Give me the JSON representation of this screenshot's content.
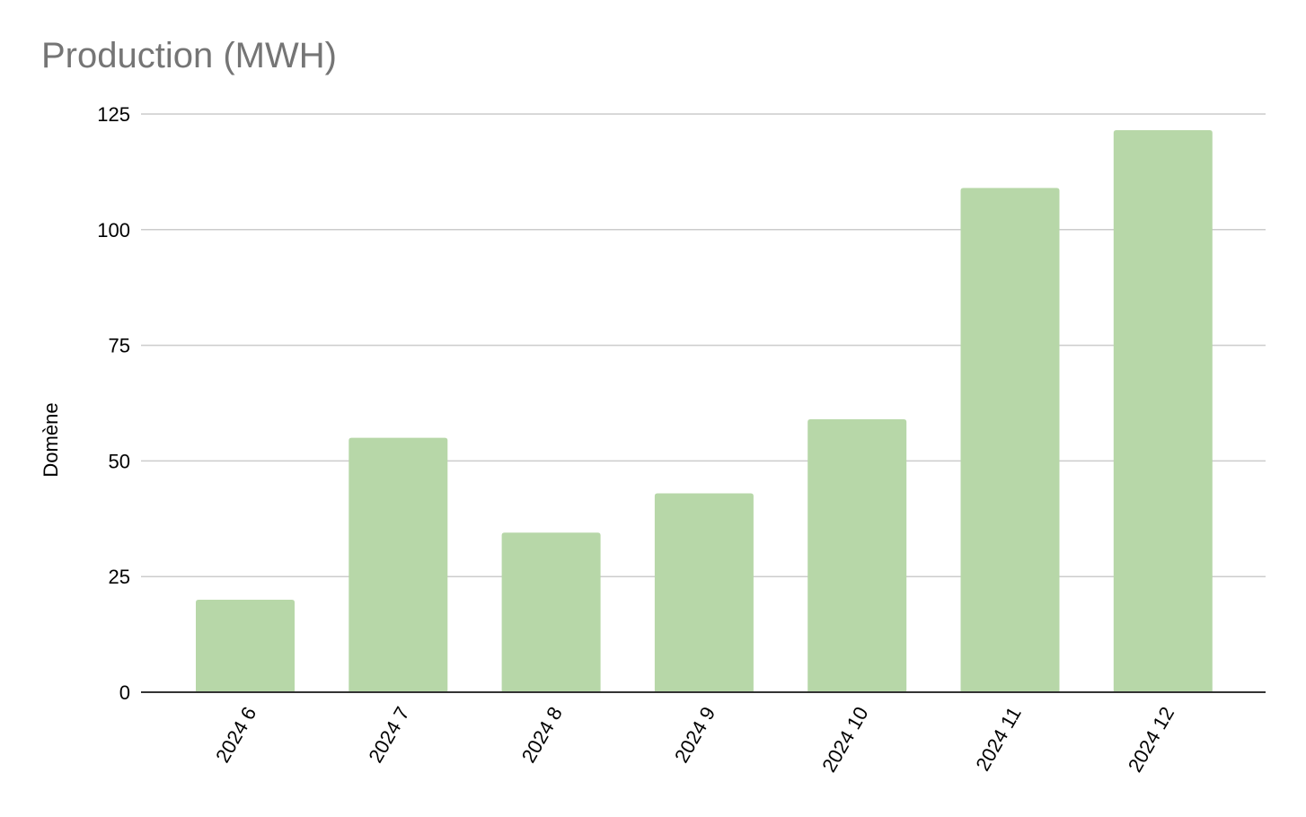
{
  "chart_data": {
    "type": "bar",
    "title": "Production (MWH)",
    "ylabel": "Domène",
    "xlabel": "",
    "categories": [
      "2024 6",
      "2024 7",
      "2024 8",
      "2024 9",
      "2024 10",
      "2024 11",
      "2024 12"
    ],
    "values": [
      20,
      55,
      34.5,
      43,
      59,
      109,
      121.5
    ],
    "ylim": [
      0,
      125
    ],
    "yticks": [
      0,
      25,
      50,
      75,
      100,
      125
    ],
    "grid": true,
    "legend": "none",
    "colors": {
      "bar": "#b7d7a8",
      "grid": "#cccccc",
      "baseline": "#333333",
      "title": "#757575"
    }
  }
}
